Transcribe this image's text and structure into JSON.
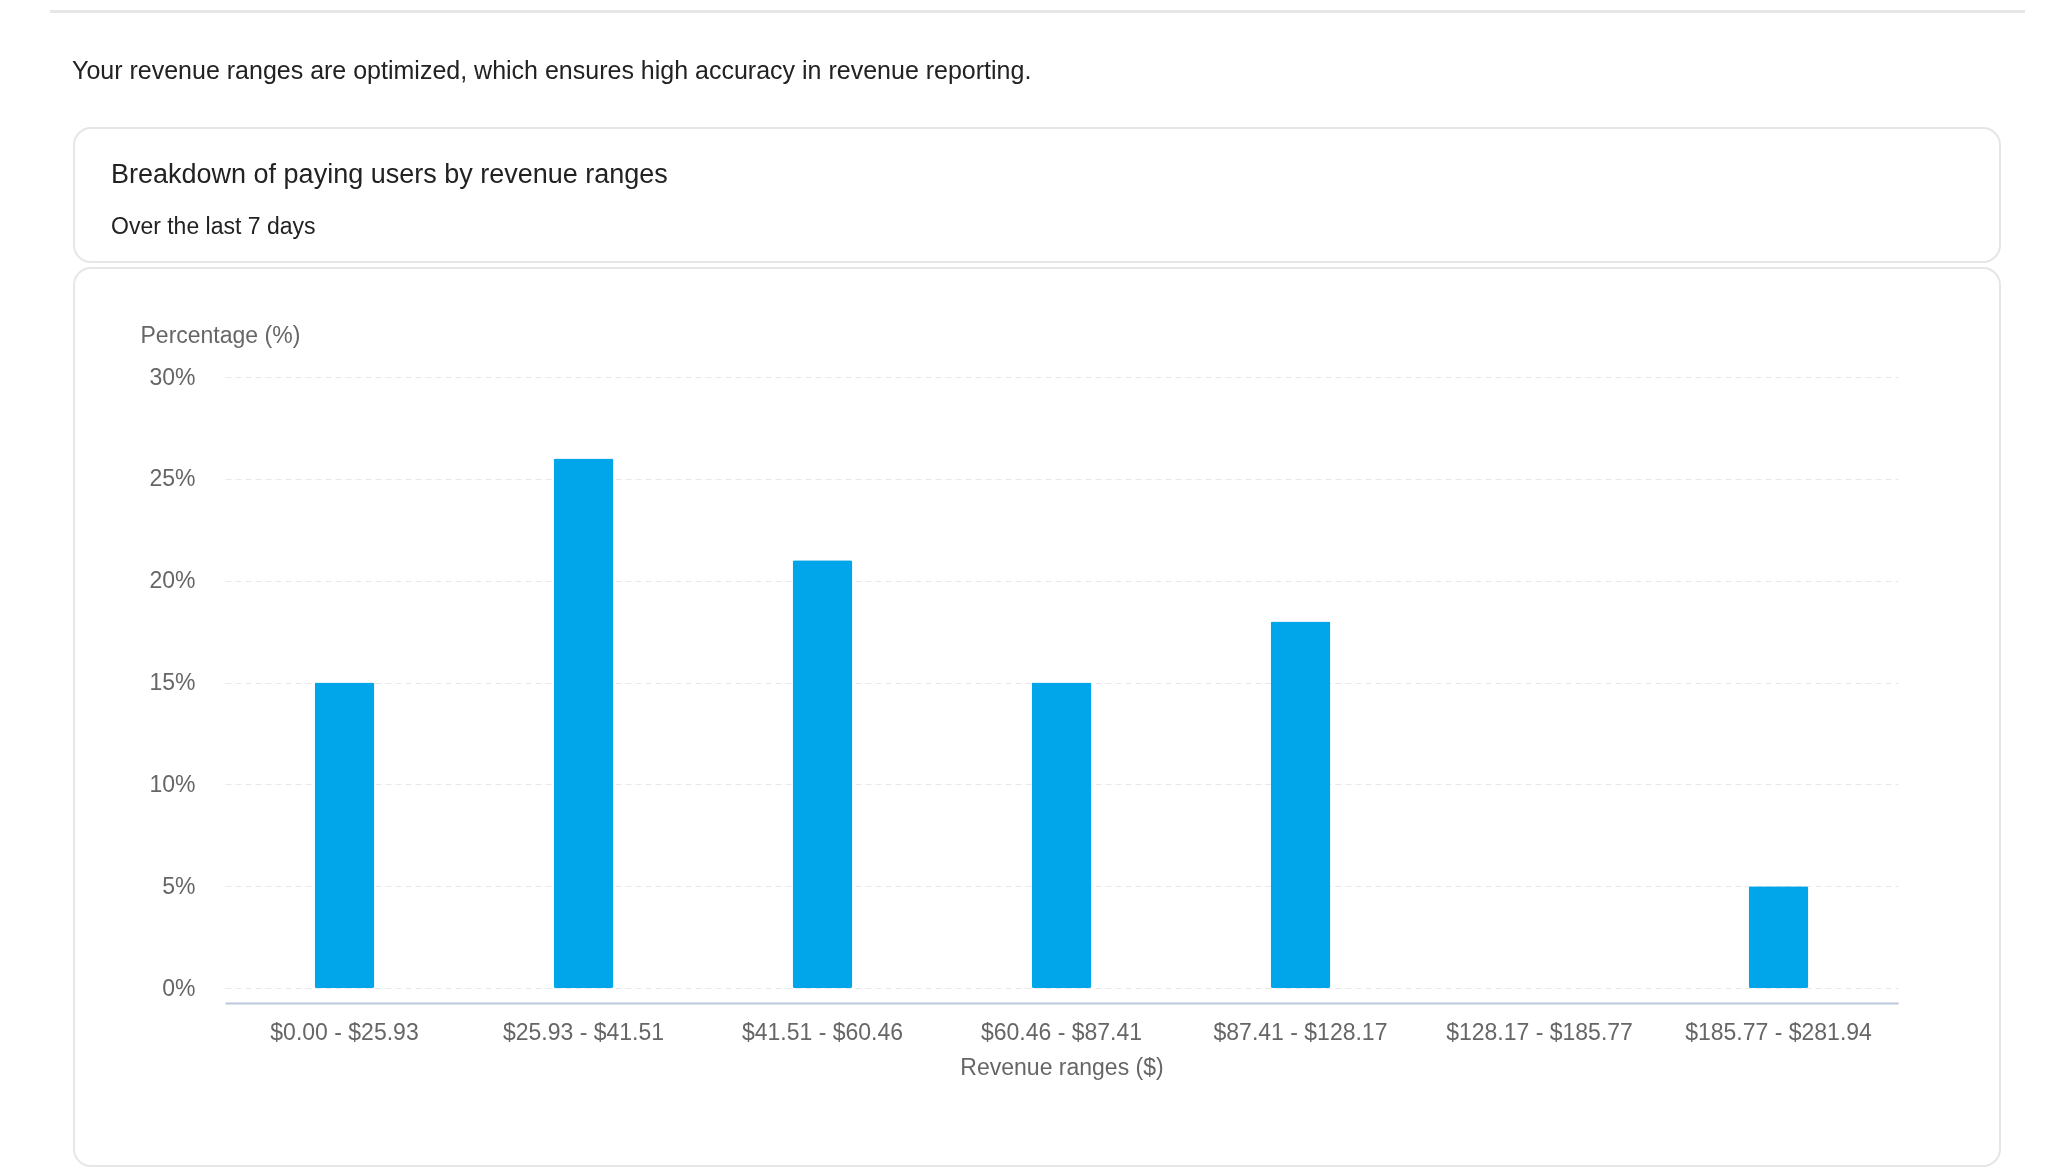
{
  "chart_data": {
    "type": "bar",
    "title": "Breakdown of paying users by revenue ranges",
    "subtitle": "Over the last 7 days",
    "annotations": [
      "Your revenue ranges are optimized, which ensures high accuracy in revenue reporting."
    ],
    "xlabel": "Revenue ranges ($)",
    "ylabel": "Percentage (%)",
    "categories": [
      "$0.00 - $25.93",
      "$25.93 - $41.51",
      "$41.51 - $60.46",
      "$60.46 - $87.41",
      "$87.41 - $128.17",
      "$128.17 - $185.77",
      "$185.77 - $281.94"
    ],
    "values": [
      15,
      26,
      21,
      15,
      18,
      0,
      5
    ],
    "color": "#00a5ea",
    "ylim": [
      0,
      30
    ],
    "yticks": [
      {
        "value": 0,
        "label": "0%"
      },
      {
        "value": 5,
        "label": "5%"
      },
      {
        "value": 10,
        "label": "10%"
      },
      {
        "value": 15,
        "label": "15%"
      },
      {
        "value": 20,
        "label": "20%"
      },
      {
        "value": 25,
        "label": "25%"
      },
      {
        "value": 30,
        "label": "30%"
      }
    ],
    "grid": "y"
  }
}
